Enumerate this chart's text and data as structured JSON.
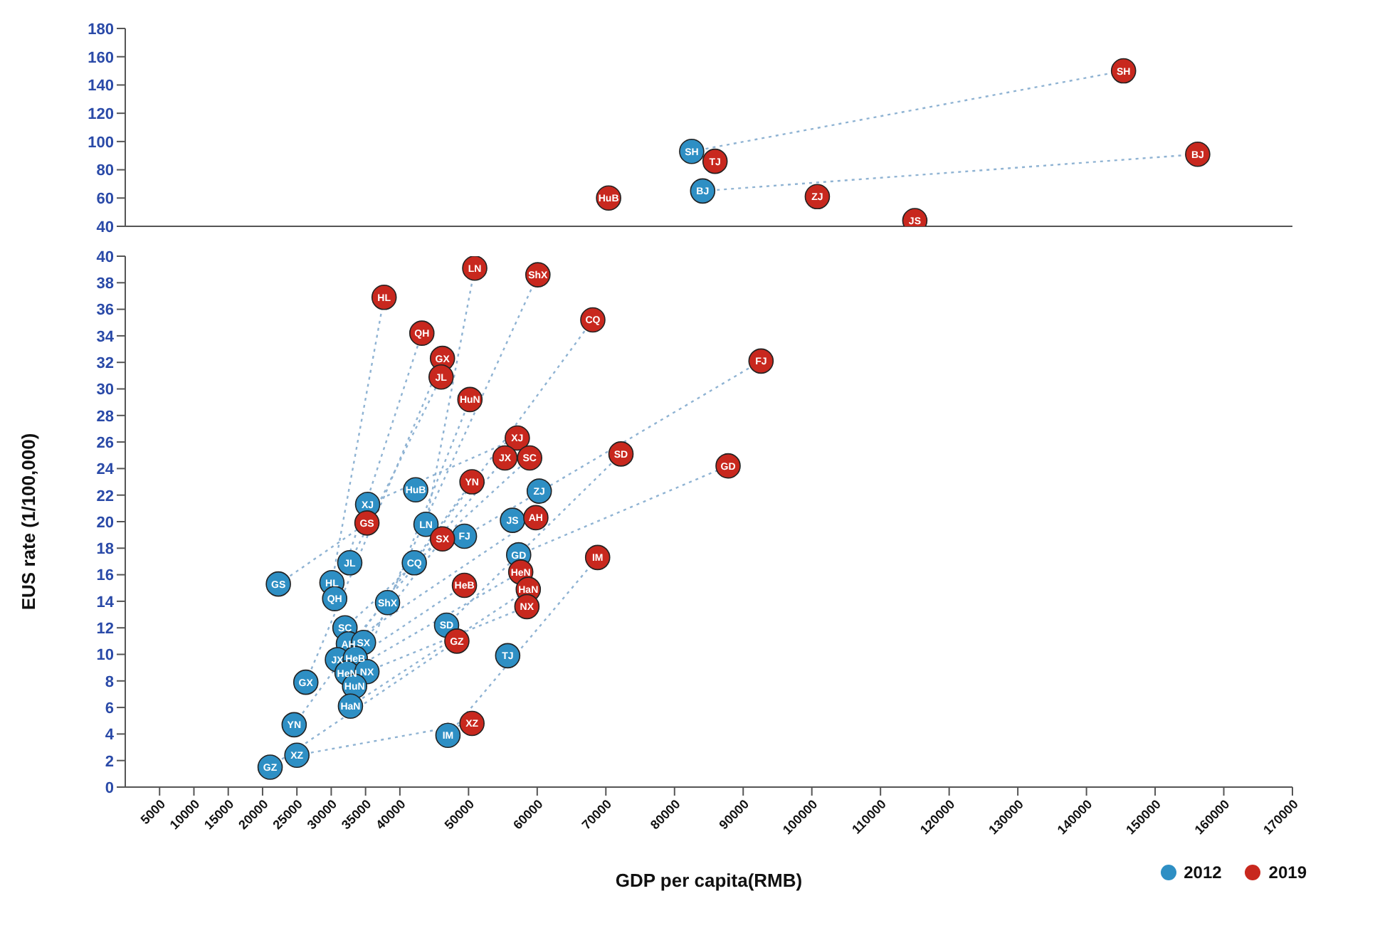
{
  "chart_data": [
    {
      "type": "scatter",
      "tick_labels": "y",
      "xlim": [
        0,
        170000
      ],
      "xticks": [
        5000,
        10000,
        15000,
        20000,
        25000,
        30000,
        35000,
        40000,
        50000,
        60000,
        70000,
        80000,
        90000,
        100000,
        110000,
        120000,
        130000,
        140000,
        150000,
        160000,
        170000
      ],
      "ylim": [
        40,
        180
      ],
      "yticks": [
        40,
        60,
        80,
        100,
        120,
        140,
        160,
        180
      ],
      "marker": "circle",
      "series": [
        {
          "type": "line",
          "color": "#8fb3d3",
          "line_style": "dotted",
          "marker": "none",
          "x": [
            82500,
            145400
          ],
          "values": [
            93,
            150
          ]
        },
        {
          "type": "line",
          "color": "#8fb3d3",
          "line_style": "dotted",
          "marker": "none",
          "x": [
            84100,
            156200
          ],
          "values": [
            65,
            91
          ]
        },
        {
          "type": "scatter",
          "color": "#2e8fc4",
          "x": [
            82500,
            84100
          ],
          "values": [
            93,
            65
          ],
          "value_labels": [
            "SH",
            "BJ"
          ]
        },
        {
          "type": "scatter",
          "color": "#c8281e",
          "x": [
            145400,
            156200,
            85900,
            70400,
            100800,
            115000
          ],
          "values": [
            150,
            91,
            86,
            60,
            61,
            44
          ],
          "value_labels": [
            "SH",
            "BJ",
            "TJ",
            "HuB",
            "ZJ",
            "JS"
          ]
        }
      ]
    },
    {
      "type": "scatter",
      "xlabel": "GDP per capita(RMB)",
      "ylabel": "EUS rate (1/100,000)",
      "legend": "bottom right",
      "xlim": [
        0,
        170000
      ],
      "xticks": [
        5000,
        10000,
        15000,
        20000,
        25000,
        30000,
        35000,
        40000,
        50000,
        60000,
        70000,
        80000,
        90000,
        100000,
        110000,
        120000,
        130000,
        140000,
        150000,
        160000,
        170000
      ],
      "ylim": [
        0,
        40
      ],
      "yticks": [
        0,
        2,
        4,
        6,
        8,
        10,
        12,
        14,
        16,
        18,
        20,
        22,
        24,
        26,
        28,
        30,
        32,
        34,
        36,
        38,
        40
      ],
      "marker": "circle",
      "series": [
        {
          "type": "line",
          "color": "#8fb3d3",
          "line_style": "dotted",
          "marker": "none",
          "x": [
            43800,
            50900
          ],
          "values": [
            19.8,
            39.1
          ]
        },
        {
          "type": "line",
          "color": "#8fb3d3",
          "line_style": "dotted",
          "marker": "none",
          "x": [
            38200,
            60100
          ],
          "values": [
            13.9,
            38.6
          ]
        },
        {
          "type": "line",
          "color": "#8fb3d3",
          "line_style": "dotted",
          "marker": "none",
          "x": [
            42100,
            68100
          ],
          "values": [
            16.9,
            35.2
          ]
        },
        {
          "type": "line",
          "color": "#8fb3d3",
          "line_style": "dotted",
          "marker": "none",
          "x": [
            49400,
            92600
          ],
          "values": [
            18.9,
            32.1
          ]
        },
        {
          "type": "line",
          "color": "#8fb3d3",
          "line_style": "dotted",
          "marker": "none",
          "x": [
            35300,
            57100
          ],
          "values": [
            21.3,
            26.3
          ]
        },
        {
          "type": "line",
          "color": "#8fb3d3",
          "line_style": "dotted",
          "marker": "none",
          "x": [
            30900,
            55300
          ],
          "values": [
            9.6,
            24.8
          ]
        },
        {
          "type": "line",
          "color": "#8fb3d3",
          "line_style": "dotted",
          "marker": "none",
          "x": [
            32000,
            58900
          ],
          "values": [
            12.0,
            24.8
          ]
        },
        {
          "type": "line",
          "color": "#8fb3d3",
          "line_style": "dotted",
          "marker": "none",
          "x": [
            46800,
            72200
          ],
          "values": [
            12.2,
            25.1
          ]
        },
        {
          "type": "line",
          "color": "#8fb3d3",
          "line_style": "dotted",
          "marker": "none",
          "x": [
            57300,
            87800
          ],
          "values": [
            17.5,
            24.2
          ]
        },
        {
          "type": "line",
          "color": "#8fb3d3",
          "line_style": "dotted",
          "marker": "none",
          "x": [
            33400,
            50200
          ],
          "values": [
            7.6,
            29.2
          ]
        },
        {
          "type": "line",
          "color": "#8fb3d3",
          "line_style": "dotted",
          "marker": "none",
          "x": [
            30100,
            37700
          ],
          "values": [
            15.4,
            36.9
          ]
        },
        {
          "type": "line",
          "color": "#8fb3d3",
          "line_style": "dotted",
          "marker": "none",
          "x": [
            30500,
            43200
          ],
          "values": [
            14.2,
            34.2
          ]
        },
        {
          "type": "line",
          "color": "#8fb3d3",
          "line_style": "dotted",
          "marker": "none",
          "x": [
            26300,
            46200
          ],
          "values": [
            7.9,
            32.3
          ]
        },
        {
          "type": "line",
          "color": "#8fb3d3",
          "line_style": "dotted",
          "marker": "none",
          "x": [
            32700,
            46000
          ],
          "values": [
            16.9,
            30.9
          ]
        },
        {
          "type": "line",
          "color": "#8fb3d3",
          "line_style": "dotted",
          "marker": "none",
          "x": [
            24600,
            50500
          ],
          "values": [
            4.7,
            23.0
          ]
        },
        {
          "type": "line",
          "color": "#8fb3d3",
          "line_style": "dotted",
          "marker": "none",
          "x": [
            32500,
            59800
          ],
          "values": [
            10.8,
            20.3
          ]
        },
        {
          "type": "line",
          "color": "#8fb3d3",
          "line_style": "dotted",
          "marker": "none",
          "x": [
            22300,
            35200
          ],
          "values": [
            15.3,
            19.9
          ]
        },
        {
          "type": "line",
          "color": "#8fb3d3",
          "line_style": "dotted",
          "marker": "none",
          "x": [
            34700,
            46200
          ],
          "values": [
            10.9,
            18.7
          ]
        },
        {
          "type": "line",
          "color": "#8fb3d3",
          "line_style": "dotted",
          "marker": "none",
          "x": [
            47000,
            68800
          ],
          "values": [
            3.9,
            17.3
          ]
        },
        {
          "type": "line",
          "color": "#8fb3d3",
          "line_style": "dotted",
          "marker": "none",
          "x": [
            33500,
            49400
          ],
          "values": [
            9.7,
            15.2
          ]
        },
        {
          "type": "line",
          "color": "#8fb3d3",
          "line_style": "dotted",
          "marker": "none",
          "x": [
            32300,
            57600
          ],
          "values": [
            8.6,
            16.2
          ]
        },
        {
          "type": "line",
          "color": "#8fb3d3",
          "line_style": "dotted",
          "marker": "none",
          "x": [
            32800,
            58700
          ],
          "values": [
            6.1,
            14.9
          ]
        },
        {
          "type": "line",
          "color": "#8fb3d3",
          "line_style": "dotted",
          "marker": "none",
          "x": [
            35200,
            58500
          ],
          "values": [
            8.7,
            13.6
          ]
        },
        {
          "type": "line",
          "color": "#8fb3d3",
          "line_style": "dotted",
          "marker": "none",
          "x": [
            21100,
            48300
          ],
          "values": [
            1.5,
            11.0
          ]
        },
        {
          "type": "line",
          "color": "#8fb3d3",
          "line_style": "dotted",
          "marker": "none",
          "x": [
            25000,
            50500
          ],
          "values": [
            2.4,
            4.8
          ]
        },
        {
          "type": "scatter",
          "name": "2012",
          "color": "#2e8fc4",
          "x": [
            55700,
            60300,
            56400,
            49400,
            43800,
            42300,
            42100,
            38200,
            46800,
            47000,
            57300,
            35300,
            32700,
            30100,
            30500,
            32000,
            32500,
            34700,
            30900,
            33500,
            32300,
            35200,
            33400,
            32800,
            22300,
            26300,
            24600,
            25000,
            21100
          ],
          "values": [
            9.9,
            22.3,
            20.1,
            18.9,
            19.8,
            22.4,
            16.9,
            13.9,
            12.2,
            3.9,
            17.5,
            21.3,
            16.9,
            15.4,
            14.2,
            12.0,
            10.8,
            10.9,
            9.6,
            9.7,
            8.6,
            8.7,
            7.6,
            6.1,
            15.3,
            7.9,
            4.7,
            2.4,
            1.5
          ],
          "value_labels": [
            "TJ",
            "ZJ",
            "JS",
            "FJ",
            "LN",
            "HuB",
            "CQ",
            "ShX",
            "SD",
            "IM",
            "GD",
            "XJ",
            "JL",
            "HL",
            "QH",
            "SC",
            "AH",
            "SX",
            "JX",
            "HeB",
            "HeN",
            "NX",
            "HuN",
            "HaN",
            "GS",
            "GX",
            "YN",
            "XZ",
            "GZ"
          ]
        },
        {
          "type": "scatter",
          "name": "2019",
          "color": "#c8281e",
          "x": [
            50900,
            60100,
            68100,
            92600,
            57100,
            55300,
            58900,
            72200,
            87800,
            50200,
            37700,
            43200,
            46200,
            46000,
            50500,
            59800,
            35200,
            46200,
            68800,
            49400,
            57600,
            58700,
            58500,
            48300,
            50500
          ],
          "values": [
            39.1,
            38.6,
            35.2,
            32.1,
            26.3,
            24.8,
            24.8,
            25.1,
            24.2,
            29.2,
            36.9,
            34.2,
            32.3,
            30.9,
            23.0,
            20.3,
            19.9,
            18.7,
            17.3,
            15.2,
            16.2,
            14.9,
            13.6,
            11.0,
            4.8
          ],
          "value_labels": [
            "LN",
            "ShX",
            "CQ",
            "FJ",
            "XJ",
            "JX",
            "SC",
            "SD",
            "GD",
            "HuN",
            "HL",
            "QH",
            "GX",
            "JL",
            "YN",
            "AH",
            "GS",
            "SX",
            "IM",
            "HeB",
            "HeN",
            "HaN",
            "NX",
            "GZ",
            "XZ"
          ]
        }
      ]
    }
  ]
}
